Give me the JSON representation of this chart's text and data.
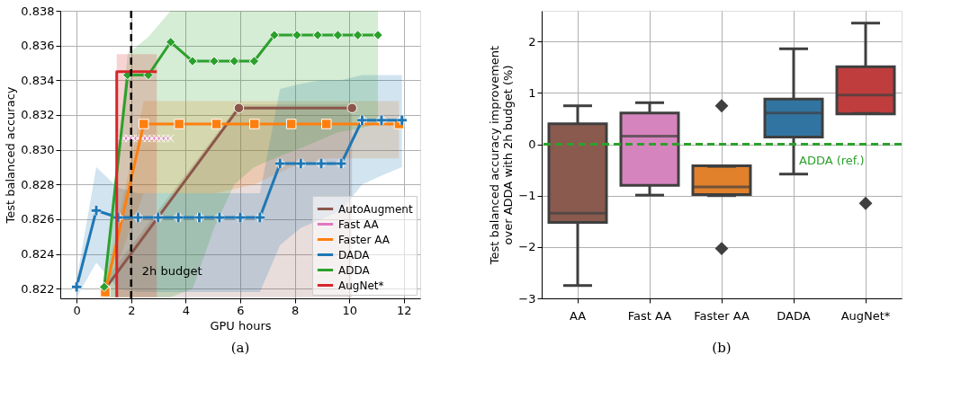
{
  "chart_data": [
    {
      "type": "line",
      "xlabel": "GPU hours",
      "ylabel": "Test balanced accuracy",
      "xlim": [
        -0.6,
        12.6
      ],
      "ylim": [
        0.82144,
        0.838
      ],
      "xticks": [
        0,
        2,
        4,
        6,
        8,
        10,
        12
      ],
      "yticks": [
        0.822,
        0.824,
        0.826,
        0.828,
        {
          "value": 0.83,
          "label": "0.830"
        },
        0.832,
        0.834,
        0.836,
        0.838
      ],
      "grid": true,
      "legend": "bottom right",
      "annotations": [
        "(a)"
      ],
      "ref_lines": [
        {
          "axis": "x",
          "value": 2,
          "label": "2h budget",
          "color": "#000000",
          "line_style": "dashed"
        }
      ],
      "series": [
        {
          "name": "AutoAugment",
          "color": "#8c564b",
          "marker": "circle",
          "x": [
            1.05,
            5.95,
            10.1
          ],
          "values": [
            0.822,
            0.8324,
            0.8324
          ],
          "lower": [
            0.8215,
            0.8215,
            0.8215
          ],
          "upper": [
            0.8225,
            0.8326,
            0.8326
          ]
        },
        {
          "name": "Fast AA",
          "color": "#e377c2",
          "marker": "x",
          "x": [
            1.55,
            1.72,
            1.9,
            2.07,
            2.24,
            2.41,
            2.59,
            2.76,
            2.93,
            3.1,
            3.27,
            3.43
          ],
          "values": [
            0.83065,
            0.83065,
            0.83065,
            0.83065,
            0.83065,
            0.83065,
            0.83065,
            0.83065,
            0.83065,
            0.83065,
            0.83065,
            0.83065
          ]
        },
        {
          "name": "Faster AA",
          "color": "#ff7f0e",
          "marker": "square",
          "x": [
            1.05,
            2.46,
            3.76,
            5.13,
            6.52,
            7.87,
            9.16,
            11.82
          ],
          "values": [
            0.8218,
            0.83148,
            0.83148,
            0.83148,
            0.83148,
            0.83148,
            0.83148,
            0.83148
          ],
          "lower": [
            0.8215,
            0.8275,
            0.8275,
            0.8275,
            0.828,
            0.829,
            0.8295,
            0.8295
          ],
          "upper": [
            0.8225,
            0.8328,
            0.8328,
            0.8328,
            0.8328,
            0.8328,
            0.8328,
            0.8328
          ]
        },
        {
          "name": "DADA",
          "color": "#1f77b4",
          "marker": "cross",
          "x": [
            0,
            0.72,
            1.52,
            2.25,
            2.99,
            3.73,
            4.5,
            5.24,
            6.0,
            6.72,
            7.46,
            8.22,
            8.97,
            9.7,
            10.47,
            11.18,
            11.93
          ],
          "values": [
            0.8221,
            0.8265,
            0.8261,
            0.8261,
            0.8261,
            0.8261,
            0.8261,
            0.8261,
            0.8261,
            0.8261,
            0.8292,
            0.8292,
            0.8292,
            0.8292,
            0.8317,
            0.8317,
            0.8317
          ],
          "lower": [
            0.8215,
            0.8235,
            0.822,
            0.8218,
            0.8218,
            0.8218,
            0.8218,
            0.8218,
            0.8218,
            0.8218,
            0.8245,
            0.8255,
            0.826,
            0.8265,
            0.828,
            0.8285,
            0.829
          ],
          "upper": [
            0.8225,
            0.829,
            0.8278,
            0.8275,
            0.8275,
            0.8275,
            0.8275,
            0.8275,
            0.8275,
            0.8275,
            0.8335,
            0.8338,
            0.834,
            0.834,
            0.8343,
            0.8343,
            0.8343
          ]
        },
        {
          "name": "ADDA",
          "color": "#2ca02c",
          "marker": "diamond",
          "x": [
            1.01,
            1.87,
            2.63,
            3.45,
            4.25,
            5.04,
            5.78,
            6.51,
            7.25,
            8.08,
            8.84,
            9.58,
            10.31,
            11.05
          ],
          "values": [
            0.8221,
            0.8343,
            0.8343,
            0.8362,
            0.8351,
            0.8351,
            0.8351,
            0.8351,
            0.8366,
            0.8366,
            0.8366,
            0.8366,
            0.8366,
            0.8366
          ],
          "lower": [
            0.8215,
            0.8215,
            0.8215,
            0.8215,
            0.822,
            0.8255,
            0.828,
            0.829,
            0.8295,
            0.83,
            0.8305,
            0.831,
            0.8312,
            0.8315
          ],
          "upper": [
            0.8222,
            0.8355,
            0.8365,
            0.838,
            0.838,
            0.838,
            0.838,
            0.838,
            0.838,
            0.838,
            0.838,
            0.838,
            0.838,
            0.838
          ]
        },
        {
          "name": "AugNet*",
          "color": "#d62728",
          "marker": "none",
          "x": [
            1.47,
            1.47,
            2.94
          ],
          "values": [
            0.8215,
            0.8345,
            0.8345
          ],
          "lower": [
            0.8215,
            0.8215,
            0.8215
          ],
          "upper": [
            0.8215,
            0.8355,
            0.8355
          ]
        }
      ]
    },
    {
      "type": "box",
      "ylabel": "Test balanced accuracy improvement\nover ADDA with 2h budget (%)",
      "categories": [
        "AA",
        "Fast AA",
        "Faster AA",
        "DADA",
        "AugNet*"
      ],
      "ylim": [
        -3,
        2.6
      ],
      "yticks": [
        -3,
        -2,
        -1,
        0,
        1,
        2
      ],
      "grid": true,
      "annotations": [
        "(b)"
      ],
      "colors": [
        "#8a5a4f",
        "#d684bd",
        "#e1812c",
        "#3274a1",
        "#c03d3e"
      ],
      "ref_lines": [
        {
          "axis": "y",
          "value": 0,
          "label": "ADDA (ref.)",
          "color": "#2ca02c",
          "line_style": "dashed"
        }
      ],
      "boxes": [
        {
          "low": -2.75,
          "q1": -1.52,
          "median": -1.34,
          "q3": 0.4,
          "high": 0.75
        },
        {
          "low": -0.99,
          "q1": -0.8,
          "median": 0.16,
          "q3": 0.61,
          "high": 0.81
        },
        {
          "low": -1.0,
          "q1": -0.98,
          "median": -0.83,
          "q3": -0.42,
          "high": -0.43,
          "outliers": [
            0.75,
            -2.03
          ]
        },
        {
          "low": -0.58,
          "q1": 0.14,
          "median": 0.61,
          "q3": 0.88,
          "high": 1.86
        },
        {
          "low": 0.6,
          "q1": 0.59,
          "median": 0.96,
          "q3": 1.51,
          "high": 2.36,
          "outliers": [
            -1.15
          ]
        }
      ]
    }
  ]
}
